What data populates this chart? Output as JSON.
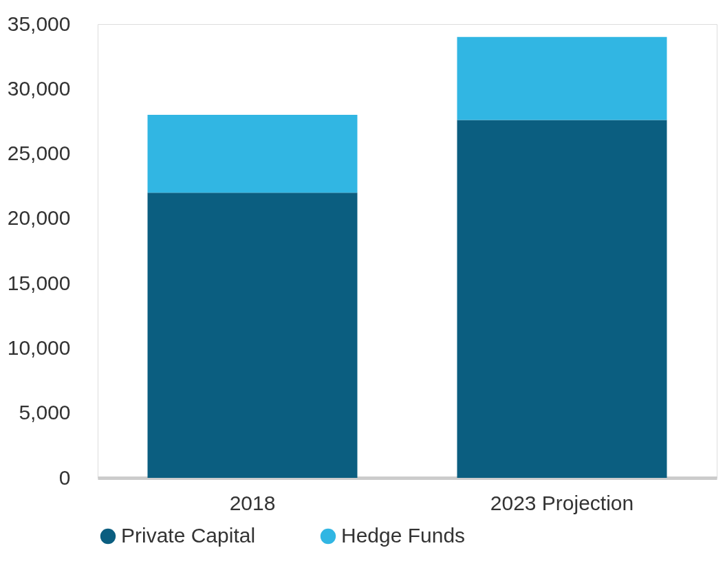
{
  "chart_data": {
    "type": "bar",
    "stacked": true,
    "categories": [
      "2018",
      "2023 Projection"
    ],
    "series": [
      {
        "name": "Private Capital",
        "color": "#0b5e80",
        "values": [
          22000,
          27600
        ]
      },
      {
        "name": "Hedge Funds",
        "color": "#31b6e3",
        "values": [
          6000,
          6400
        ]
      }
    ],
    "ylim": [
      0,
      35000
    ],
    "yticks": [
      {
        "value": 0,
        "label": "0"
      },
      {
        "value": 5000,
        "label": "5,000"
      },
      {
        "value": 10000,
        "label": "10,000"
      },
      {
        "value": 15000,
        "label": "15,000"
      },
      {
        "value": 20000,
        "label": "20,000"
      },
      {
        "value": 25000,
        "label": "25,000"
      },
      {
        "value": 30000,
        "label": "30,000"
      },
      {
        "value": 35000,
        "label": "35,000"
      }
    ],
    "grid": false,
    "legend": "bottom"
  }
}
